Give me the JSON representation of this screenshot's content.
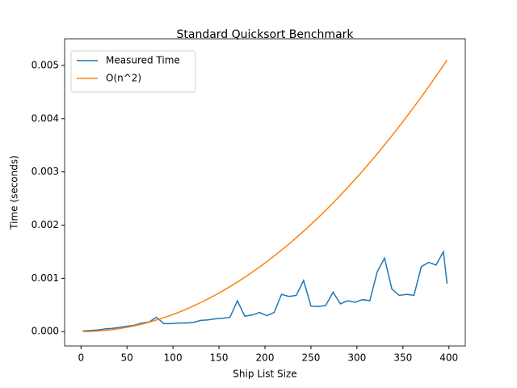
{
  "chart_data": {
    "type": "line",
    "title": "Standard Quicksort Benchmark",
    "x_label": "Ship List Size",
    "y_label": "Time (seconds)",
    "x": [
      2,
      10,
      18,
      26,
      34,
      42,
      50,
      58,
      66,
      74,
      82,
      90,
      98,
      106,
      114,
      122,
      130,
      138,
      146,
      154,
      162,
      170,
      178,
      186,
      194,
      202,
      210,
      218,
      226,
      234,
      242,
      250,
      258,
      266,
      274,
      282,
      290,
      298,
      306,
      314,
      322,
      330,
      338,
      346,
      354,
      362,
      370,
      378,
      386,
      394,
      398
    ],
    "series": [
      {
        "name": "Measured Time",
        "color": "#1f77b4",
        "values": [
          1e-05,
          2e-05,
          3e-05,
          5e-05,
          6e-05,
          8e-05,
          0.0001,
          0.00012,
          0.00016,
          0.00018,
          0.00027,
          0.00015,
          0.00015,
          0.00016,
          0.00016,
          0.00017,
          0.00021,
          0.00022,
          0.00024,
          0.00025,
          0.00027,
          0.00058,
          0.00029,
          0.00031,
          0.00036,
          0.0003,
          0.00036,
          0.0007,
          0.00066,
          0.00068,
          0.00096,
          0.00048,
          0.00047,
          0.00049,
          0.00074,
          0.00052,
          0.00058,
          0.00055,
          0.0006,
          0.00058,
          0.00112,
          0.00138,
          0.0008,
          0.00068,
          0.0007,
          0.00068,
          0.00122,
          0.0013,
          0.00125,
          0.0015,
          0.0009
        ]
      },
      {
        "name": "O(n^2)",
        "color": "#ff7f0e",
        "values": [
          1e-07,
          3.2e-06,
          1.04e-05,
          2.18e-05,
          3.72e-05,
          5.68e-05,
          8.05e-05,
          0.0001083,
          0.0001403,
          0.0001763,
          0.0002165,
          0.0002608,
          0.0003092,
          0.0003618,
          0.0004185,
          0.0004793,
          0.0005442,
          0.0006132,
          0.0006864,
          0.0007637,
          0.0008451,
          0.0009306,
          0.0010202,
          0.001114,
          0.0012119,
          0.0013139,
          0.00142,
          0.0015303,
          0.0016446,
          0.0017631,
          0.0018857,
          0.0020125,
          0.0021434,
          0.0022784,
          0.0024175,
          0.0025607,
          0.002708,
          0.0028594,
          0.003015,
          0.0031747,
          0.0033386,
          0.0035066,
          0.0036787,
          0.0038549,
          0.0040352,
          0.0042196,
          0.0044082,
          0.0046009,
          0.0047977,
          0.0049986,
          0.0051007
        ]
      }
    ],
    "xlim": [
      -17.8,
      417.8
    ],
    "xticks": [
      0,
      50,
      100,
      150,
      200,
      250,
      300,
      350,
      400
    ],
    "ylim": [
      -0.00027,
      0.0055
    ],
    "yticks": [
      {
        "value": 0,
        "label": "0.000"
      },
      {
        "value": 0.001,
        "label": "0.001"
      },
      {
        "value": 0.002,
        "label": "0.002"
      },
      {
        "value": 0.003,
        "label": "0.003"
      },
      {
        "value": 0.004,
        "label": "0.004"
      },
      {
        "value": 0.005,
        "label": "0.005"
      }
    ],
    "legend": "upper left",
    "grid": false
  }
}
